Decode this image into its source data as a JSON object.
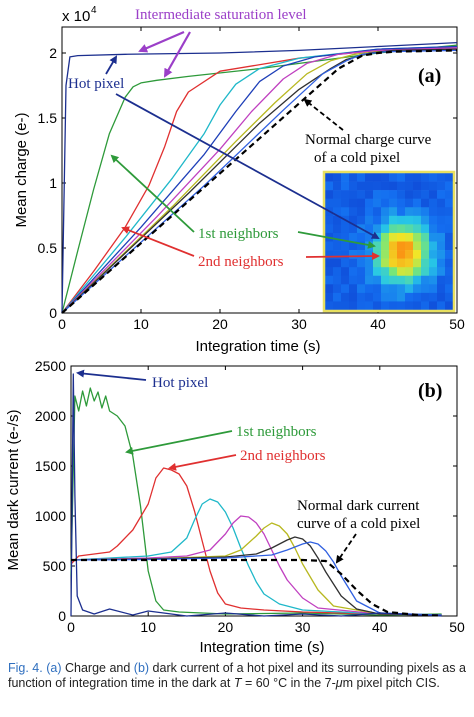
{
  "chart_data": [
    {
      "panel": "(a)",
      "type": "line",
      "xlabel": "Integration time (s)",
      "ylabel": "Mean charge (e-)",
      "y_multiplier": "x 10",
      "y_exponent": "4",
      "xlim": [
        0,
        50
      ],
      "ylim": [
        0,
        2.2
      ],
      "xticks": [
        0,
        10,
        20,
        30,
        40,
        50
      ],
      "yticks": [
        0,
        0.5,
        1,
        1.5,
        2
      ],
      "ytick_labels": [
        "0",
        "0.5",
        "1",
        "1.5",
        "2"
      ],
      "series": [
        {
          "role": "hot",
          "color": "#1c2f8f",
          "x": [
            0,
            0.5,
            1,
            2,
            8,
            20,
            30,
            40,
            50
          ],
          "y": [
            0,
            1.75,
            1.97,
            1.98,
            1.99,
            2.0,
            2.02,
            2.05,
            2.08
          ]
        },
        {
          "role": "nb1",
          "color": "#2e9a3a",
          "x": [
            0,
            2,
            4,
            6,
            8,
            9,
            10,
            12,
            16,
            25,
            40,
            50
          ],
          "y": [
            0,
            0.48,
            0.95,
            1.38,
            1.66,
            1.74,
            1.77,
            1.79,
            1.82,
            1.88,
            2.0,
            2.06
          ]
        },
        {
          "role": "nb2",
          "color": "#e03030",
          "x": [
            0,
            4,
            8,
            11,
            13,
            14.5,
            16,
            20,
            30,
            40,
            50
          ],
          "y": [
            0,
            0.32,
            0.66,
            0.98,
            1.28,
            1.55,
            1.7,
            1.86,
            1.96,
            2.02,
            2.05
          ]
        },
        {
          "role": "other",
          "color": "#1fb8c9",
          "x": [
            0,
            8,
            14,
            18,
            20,
            22,
            25,
            30,
            40,
            50
          ],
          "y": [
            0,
            0.58,
            1.04,
            1.38,
            1.6,
            1.76,
            1.88,
            1.96,
            2.03,
            2.05
          ]
        },
        {
          "role": "other",
          "color": "#1e3fb8",
          "x": [
            0,
            10,
            18,
            22,
            25,
            28,
            32,
            40,
            50
          ],
          "y": [
            0,
            0.66,
            1.22,
            1.55,
            1.78,
            1.9,
            1.97,
            2.03,
            2.05
          ]
        },
        {
          "role": "other",
          "color": "#c040c0",
          "x": [
            0,
            12,
            20,
            24,
            28,
            31,
            35,
            40,
            50
          ],
          "y": [
            0,
            0.74,
            1.26,
            1.55,
            1.8,
            1.92,
            1.99,
            2.02,
            2.04
          ]
        },
        {
          "role": "other",
          "color": "#b8b820",
          "x": [
            0,
            14,
            22,
            27,
            31,
            34,
            37,
            40,
            50
          ],
          "y": [
            0,
            0.82,
            1.32,
            1.62,
            1.84,
            1.94,
            1.99,
            2.01,
            2.03
          ]
        },
        {
          "role": "other",
          "color": "#303030",
          "x": [
            0,
            16,
            25,
            30,
            34,
            36,
            39,
            42,
            50
          ],
          "y": [
            0,
            0.92,
            1.46,
            1.72,
            1.88,
            1.95,
            2.0,
            2.02,
            2.03
          ]
        },
        {
          "role": "other",
          "color": "#3060e0",
          "x": [
            0,
            18,
            28,
            33,
            36,
            38,
            41,
            50
          ],
          "y": [
            0,
            0.98,
            1.56,
            1.84,
            1.94,
            1.99,
            2.01,
            2.02
          ]
        },
        {
          "role": "cold",
          "color": "#000000",
          "dash": true,
          "x": [
            0,
            35,
            38,
            40,
            42,
            50
          ],
          "y": [
            0,
            1.88,
            1.98,
            2.0,
            2.01,
            2.02
          ]
        }
      ],
      "annotations": {
        "panel_label": "(a)",
        "intermediate": "Intermediate saturation level",
        "hot": "Hot pixel",
        "normal_line1": "Normal charge curve",
        "normal_line2": "of a cold pixel",
        "nb1": "1st neighbors",
        "nb2": "2nd neighbors"
      },
      "inset": "heatmap image of the hot pixel and its surrounding pixels"
    },
    {
      "panel": "(b)",
      "type": "line",
      "xlabel": "Integration time (s)",
      "ylabel": "Mean dark current (e-/s)",
      "xlim": [
        0,
        50
      ],
      "ylim": [
        0,
        2500
      ],
      "xticks": [
        0,
        10,
        20,
        30,
        40,
        50
      ],
      "yticks": [
        0,
        500,
        1000,
        1500,
        2000,
        2500
      ],
      "series": [
        {
          "role": "hot",
          "color": "#1c2f8f",
          "x": [
            0,
            0.3,
            0.5,
            0.8,
            1.5,
            3,
            5,
            8,
            10,
            15,
            20,
            25,
            30,
            35,
            40,
            45,
            48
          ],
          "y": [
            0,
            2420,
            1200,
            200,
            60,
            20,
            70,
            10,
            50,
            0,
            30,
            0,
            20,
            0,
            30,
            10,
            0
          ]
        },
        {
          "role": "nb1",
          "color": "#2e9a3a",
          "x": [
            0,
            0.5,
            1,
            1.5,
            2,
            2.5,
            3,
            3.5,
            4,
            4.5,
            5,
            6,
            7,
            8,
            9,
            10,
            11,
            12,
            14,
            20,
            30,
            40,
            48
          ],
          "y": [
            400,
            2200,
            2050,
            2250,
            2100,
            2280,
            2150,
            2240,
            2080,
            2200,
            2050,
            2000,
            1900,
            1600,
            1100,
            450,
            150,
            60,
            40,
            20,
            30,
            10,
            20
          ]
        },
        {
          "role": "nb2",
          "color": "#e03030",
          "x": [
            0,
            1,
            3,
            5,
            6,
            8,
            10,
            11,
            12,
            13,
            14,
            15,
            16,
            17,
            18,
            19,
            20,
            22,
            25,
            30,
            40,
            48
          ],
          "y": [
            520,
            600,
            620,
            640,
            700,
            860,
            1120,
            1380,
            1480,
            1460,
            1420,
            1300,
            1050,
            750,
            450,
            230,
            120,
            80,
            60,
            40,
            20,
            10
          ]
        },
        {
          "role": "other",
          "color": "#1fb8c9",
          "x": [
            0,
            5,
            10,
            13,
            15,
            16,
            17,
            18,
            19,
            20,
            21,
            22,
            23,
            24,
            25,
            27,
            30,
            40,
            48
          ],
          "y": [
            560,
            580,
            600,
            640,
            780,
            960,
            1120,
            1170,
            1140,
            1040,
            880,
            680,
            500,
            340,
            220,
            120,
            60,
            20,
            10
          ]
        },
        {
          "role": "other",
          "color": "#c040c0",
          "x": [
            0,
            10,
            15,
            18,
            20,
            21,
            22,
            23,
            24,
            25,
            26,
            27,
            28,
            30,
            32,
            40,
            48
          ],
          "y": [
            560,
            580,
            600,
            660,
            820,
            930,
            1000,
            990,
            930,
            820,
            660,
            500,
            360,
            180,
            80,
            20,
            10
          ]
        },
        {
          "role": "other",
          "color": "#b8b820",
          "x": [
            0,
            10,
            20,
            22,
            24,
            25,
            26,
            27,
            28,
            29,
            30,
            32,
            34,
            40,
            48
          ],
          "y": [
            560,
            570,
            600,
            660,
            800,
            880,
            930,
            900,
            820,
            680,
            520,
            260,
            100,
            20,
            10
          ]
        },
        {
          "role": "other",
          "color": "#303030",
          "x": [
            0,
            10,
            20,
            24,
            26,
            28,
            29,
            30,
            31,
            32,
            33,
            35,
            37,
            40,
            48
          ],
          "y": [
            560,
            570,
            590,
            620,
            680,
            760,
            790,
            770,
            700,
            580,
            440,
            200,
            70,
            20,
            10
          ]
        },
        {
          "role": "other",
          "color": "#3060e0",
          "x": [
            0,
            10,
            20,
            26,
            28,
            30,
            31,
            32,
            33,
            34,
            35,
            37,
            40,
            48
          ],
          "y": [
            560,
            565,
            580,
            610,
            660,
            720,
            740,
            720,
            650,
            540,
            400,
            150,
            30,
            10
          ]
        },
        {
          "role": "cold",
          "color": "#000000",
          "dash": true,
          "x": [
            0,
            10,
            20,
            30,
            33,
            35,
            37,
            39,
            41,
            45,
            48
          ],
          "y": [
            560,
            560,
            560,
            560,
            550,
            420,
            260,
            120,
            40,
            10,
            5
          ]
        }
      ],
      "annotations": {
        "panel_label": "(b)",
        "hot": "Hot pixel",
        "nb1": "1st neighbors",
        "nb2": "2nd neighbors",
        "normal_line1": "Normal dark current",
        "normal_line2": "curve of a cold pixel"
      }
    }
  ],
  "caption": {
    "fig": "Fig. 4.",
    "a": "(a)",
    "t1": " Charge and ",
    "b": "(b)",
    "t2": " dark current of a hot pixel and its surrounding pixels as a function of integration time in the dark at ",
    "T": "T",
    "t3": " = 60 °C in the 7-",
    "mu": "μ",
    "t4": "m pixel pitch CIS."
  }
}
